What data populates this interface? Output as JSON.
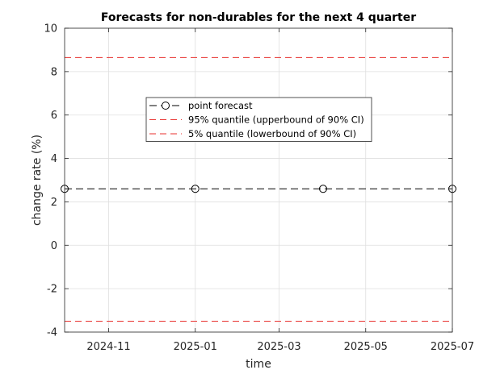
{
  "chart_data": {
    "type": "line",
    "title": "Forecasts for non-durables for the next 4 quarter",
    "xlabel": "time",
    "ylabel": "change rate (%)",
    "ylim": [
      -4,
      10
    ],
    "xlim": [
      "2024-10-01",
      "2025-07-01"
    ],
    "yticks": [
      -4,
      -2,
      0,
      2,
      4,
      6,
      8,
      10
    ],
    "xticks": [
      {
        "date": "2024-11-01",
        "label": "2024-11"
      },
      {
        "date": "2025-01-01",
        "label": "2025-01"
      },
      {
        "date": "2025-03-01",
        "label": "2025-03"
      },
      {
        "date": "2025-05-01",
        "label": "2025-05"
      },
      {
        "date": "2025-07-01",
        "label": "2025-07"
      }
    ],
    "grid": true,
    "legend_position": "upper-center",
    "series": [
      {
        "name": "point forecast",
        "x": [
          "2024-10-01",
          "2025-01-01",
          "2025-04-01",
          "2025-07-01"
        ],
        "y": [
          2.6,
          2.6,
          2.6,
          2.6
        ],
        "color": "#000000",
        "line_style": "dashed",
        "marker": "circle"
      },
      {
        "name": "95% quantile (upperbound of 90% CI)",
        "x": [
          "2024-10-01",
          "2025-01-01",
          "2025-04-01",
          "2025-07-01"
        ],
        "y": [
          8.65,
          8.65,
          8.65,
          8.65
        ],
        "color": "#e8312f",
        "line_style": "dashed",
        "marker": "none"
      },
      {
        "name": "5% quantile (lowerbound of 90% CI)",
        "x": [
          "2024-10-01",
          "2025-01-01",
          "2025-04-01",
          "2025-07-01"
        ],
        "y": [
          -3.5,
          -3.5,
          -3.5,
          -3.5
        ],
        "color": "#e8312f",
        "line_style": "dashed",
        "marker": "none"
      }
    ]
  }
}
